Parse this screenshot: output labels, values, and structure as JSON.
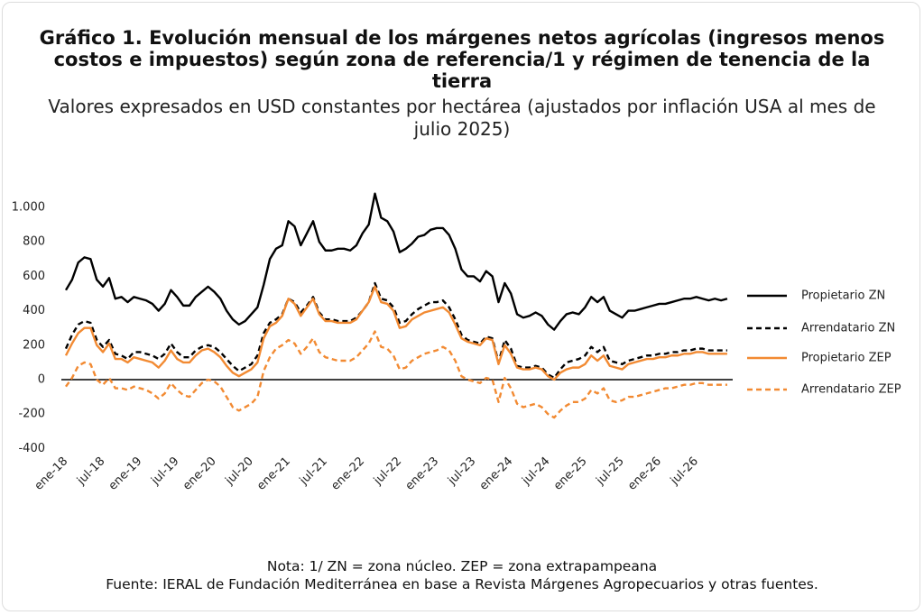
{
  "chart_data": {
    "type": "line",
    "title": "Gráfico 1. Evolución mensual de los márgenes netos agrícolas (ingresos menos costos e impuestos) según zona de referencia/1 y régimen de tenencia de la tierra",
    "subtitle": "Valores expresados en USD constantes por hectárea (ajustados por inflación USA al mes de julio 2025)",
    "note": "Nota: 1/ ZN = zona núcleo. ZEP = zona extrapampeana",
    "source": "Fuente: IERAL de Fundación Mediterránea en base a Revista Márgenes Agropecuarios y otras fuentes.",
    "categories": [
      "ene-18",
      null,
      null,
      null,
      null,
      null,
      "jul-18",
      null,
      null,
      null,
      null,
      null,
      "ene-19",
      null,
      null,
      null,
      null,
      null,
      "jul-19",
      null,
      null,
      null,
      null,
      null,
      "ene-20",
      null,
      null,
      null,
      null,
      null,
      "jul-20",
      null,
      null,
      null,
      null,
      null,
      "ene-21",
      null,
      null,
      null,
      null,
      null,
      "jul-21",
      null,
      null,
      null,
      null,
      null,
      "ene-22",
      null,
      null,
      null,
      null,
      null,
      "jul-22",
      null,
      null,
      null,
      null,
      null,
      "ene-23",
      null,
      null,
      null,
      null,
      null,
      "jul-23",
      null,
      null,
      null,
      null,
      null,
      "ene-24",
      null,
      null,
      null,
      null,
      null,
      "jul-24",
      null,
      null,
      null,
      null,
      null,
      "ene-25",
      null,
      null,
      null,
      null,
      null,
      "jul-25",
      null,
      null,
      null,
      null,
      null,
      "ene-26",
      null,
      null,
      null,
      null,
      null,
      "jul-26",
      null,
      null,
      null,
      null,
      null
    ],
    "series": [
      {
        "name": "Propietario ZN",
        "color": "#000000",
        "line_style": "solid",
        "values": [
          520,
          580,
          680,
          710,
          700,
          580,
          540,
          590,
          470,
          480,
          450,
          480,
          470,
          460,
          440,
          400,
          440,
          520,
          480,
          430,
          430,
          480,
          510,
          540,
          510,
          470,
          400,
          350,
          320,
          340,
          380,
          420,
          550,
          700,
          760,
          780,
          920,
          890,
          780,
          850,
          920,
          800,
          750,
          750,
          760,
          760,
          750,
          780,
          850,
          900,
          1080,
          940,
          920,
          860,
          740,
          760,
          790,
          830,
          840,
          870,
          880,
          880,
          840,
          760,
          640,
          600,
          600,
          570,
          630,
          600,
          450,
          560,
          500,
          380,
          360,
          370,
          390,
          370,
          320,
          290,
          340,
          380,
          390,
          380,
          420,
          480,
          450,
          480,
          400,
          380,
          360,
          400,
          400,
          410,
          420,
          430,
          440,
          440,
          450,
          460,
          470,
          470,
          480,
          470,
          460,
          470,
          460,
          470
        ]
      },
      {
        "name": "Arrendatario ZN",
        "color": "#000000",
        "line_style": "dashed",
        "values": [
          180,
          260,
          320,
          340,
          330,
          230,
          190,
          230,
          150,
          140,
          120,
          160,
          160,
          150,
          140,
          120,
          150,
          210,
          160,
          130,
          130,
          170,
          190,
          200,
          190,
          160,
          120,
          80,
          50,
          70,
          90,
          140,
          270,
          330,
          350,
          380,
          470,
          450,
          390,
          430,
          480,
          390,
          350,
          350,
          340,
          340,
          340,
          360,
          400,
          450,
          560,
          470,
          460,
          420,
          330,
          340,
          380,
          410,
          430,
          450,
          450,
          460,
          420,
          350,
          260,
          230,
          220,
          210,
          250,
          240,
          100,
          230,
          180,
          80,
          70,
          70,
          80,
          70,
          30,
          10,
          60,
          100,
          110,
          120,
          140,
          190,
          160,
          190,
          110,
          100,
          90,
          110,
          120,
          130,
          140,
          140,
          150,
          150,
          160,
          160,
          170,
          170,
          180,
          180,
          170,
          170,
          170,
          170
        ]
      },
      {
        "name": "Propietario ZEP",
        "color": "#f28a32",
        "line_style": "solid",
        "values": [
          140,
          210,
          270,
          300,
          300,
          200,
          160,
          210,
          120,
          120,
          100,
          130,
          120,
          110,
          100,
          70,
          110,
          170,
          120,
          100,
          100,
          140,
          170,
          180,
          160,
          130,
          80,
          40,
          20,
          40,
          60,
          100,
          240,
          310,
          330,
          370,
          470,
          440,
          370,
          420,
          470,
          380,
          340,
          340,
          330,
          330,
          330,
          350,
          400,
          450,
          540,
          450,
          440,
          400,
          300,
          310,
          350,
          370,
          390,
          400,
          410,
          420,
          390,
          320,
          240,
          220,
          210,
          200,
          240,
          230,
          90,
          200,
          150,
          70,
          60,
          60,
          70,
          60,
          20,
          0,
          40,
          60,
          70,
          70,
          90,
          140,
          110,
          140,
          80,
          70,
          60,
          90,
          100,
          110,
          120,
          120,
          130,
          130,
          140,
          140,
          150,
          150,
          160,
          160,
          150,
          150,
          150,
          150
        ]
      },
      {
        "name": "Arrendatario ZEP",
        "color": "#f28a32",
        "line_style": "dashed",
        "values": [
          -40,
          10,
          80,
          100,
          90,
          0,
          -30,
          10,
          -50,
          -50,
          -60,
          -40,
          -50,
          -60,
          -80,
          -110,
          -80,
          -20,
          -60,
          -90,
          -100,
          -60,
          -20,
          0,
          -10,
          -40,
          -100,
          -160,
          -180,
          -160,
          -140,
          -100,
          50,
          130,
          180,
          200,
          230,
          210,
          150,
          190,
          240,
          160,
          130,
          120,
          110,
          110,
          110,
          130,
          170,
          210,
          280,
          190,
          180,
          140,
          60,
          70,
          110,
          130,
          150,
          160,
          170,
          190,
          170,
          110,
          20,
          0,
          -10,
          -20,
          10,
          0,
          -130,
          10,
          -50,
          -140,
          -160,
          -150,
          -140,
          -160,
          -200,
          -220,
          -180,
          -150,
          -130,
          -130,
          -110,
          -60,
          -80,
          -50,
          -120,
          -130,
          -120,
          -100,
          -100,
          -90,
          -80,
          -70,
          -60,
          -50,
          -50,
          -40,
          -30,
          -30,
          -20,
          -20,
          -30,
          -30,
          -30,
          -30
        ]
      }
    ],
    "ylim": [
      -400,
      1000
    ],
    "yticks": [
      -400,
      -200,
      0,
      200,
      400,
      600,
      800,
      {
        "value": 1000,
        "label": "1.000"
      }
    ],
    "zero_line": true,
    "legend": "right"
  }
}
